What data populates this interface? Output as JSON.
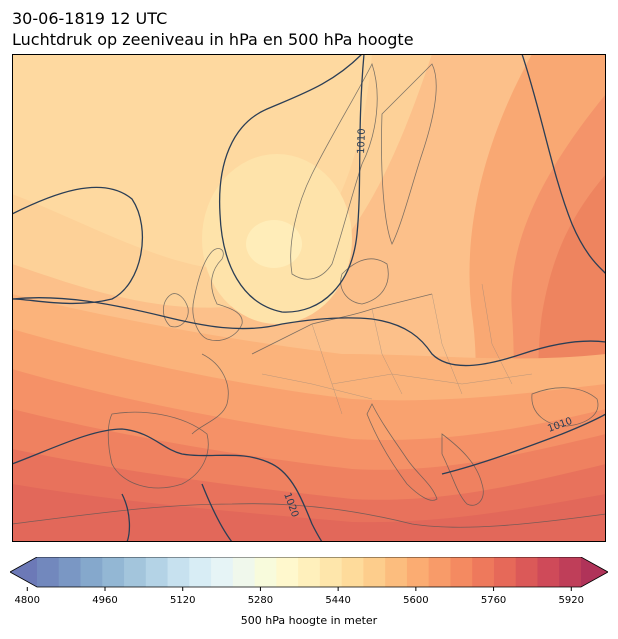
{
  "title": {
    "line1": "30-06-1819 12 UTC",
    "line2": "Luchtdruk op zeeniveau in hPa en 500 hPa hoogte"
  },
  "map": {
    "isobar_labels": [
      {
        "text": "1010",
        "name": "isobar-label-1010-north"
      },
      {
        "text": "1010",
        "name": "isobar-label-1010-southeast"
      },
      {
        "text": "1020",
        "name": "isobar-label-1020"
      }
    ]
  },
  "colorbar": {
    "label": "500 hPa hoogte in meter",
    "ticks": [
      "4800",
      "4960",
      "5120",
      "5280",
      "5440",
      "5600",
      "5760",
      "5920"
    ],
    "min": 4780,
    "max": 5980,
    "step": 40,
    "extend": "both",
    "colors": [
      "#6c79b7",
      "#7288bd",
      "#7a97c4",
      "#85a8cc",
      "#93b7d4",
      "#a3c5dc",
      "#b4d3e6",
      "#c7e1ef",
      "#d8edf5",
      "#e6f4f6",
      "#f0f8ec",
      "#f8fbdc",
      "#fff8cd",
      "#fff0bc",
      "#fee6ab",
      "#fedb9b",
      "#fdcd8c",
      "#fcbd7e",
      "#fbac72",
      "#f89b69",
      "#f48a61",
      "#ee795c",
      "#e66959",
      "#db5958",
      "#cf4a59",
      "#bf3e59",
      "#b03359"
    ]
  }
}
